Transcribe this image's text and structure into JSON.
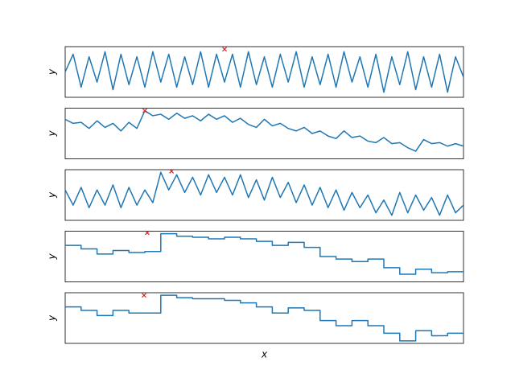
{
  "chart_data": [
    {
      "type": "line",
      "ylabel": "y",
      "color": "#1f77b4",
      "xlim": [
        0,
        100
      ],
      "ylim": [
        0,
        1
      ],
      "x": [
        0,
        2,
        4,
        6,
        8,
        10,
        12,
        14,
        16,
        18,
        20,
        22,
        24,
        26,
        28,
        30,
        32,
        34,
        36,
        38,
        40,
        42,
        44,
        46,
        48,
        50,
        52,
        54,
        56,
        58,
        60,
        62,
        64,
        66,
        68,
        70,
        72,
        74,
        76,
        78,
        80,
        82,
        84,
        86,
        88,
        90,
        92,
        94,
        96,
        98,
        100
      ],
      "values": [
        0.5,
        0.85,
        0.2,
        0.8,
        0.3,
        0.9,
        0.15,
        0.85,
        0.25,
        0.8,
        0.2,
        0.9,
        0.3,
        0.85,
        0.2,
        0.8,
        0.25,
        0.9,
        0.2,
        0.85,
        0.3,
        0.85,
        0.2,
        0.9,
        0.25,
        0.8,
        0.2,
        0.85,
        0.3,
        0.9,
        0.2,
        0.8,
        0.25,
        0.85,
        0.2,
        0.9,
        0.3,
        0.8,
        0.2,
        0.85,
        0.1,
        0.8,
        0.25,
        0.9,
        0.15,
        0.8,
        0.2,
        0.85,
        0.1,
        0.8,
        0.4
      ],
      "marker_x": 40,
      "marker_y": 0.95,
      "marker_color": "#d62728"
    },
    {
      "type": "line",
      "ylabel": "y",
      "color": "#1f77b4",
      "xlim": [
        0,
        100
      ],
      "ylim": [
        0,
        1
      ],
      "x": [
        0,
        2,
        4,
        6,
        8,
        10,
        12,
        14,
        16,
        18,
        20,
        22,
        24,
        26,
        28,
        30,
        32,
        34,
        36,
        38,
        40,
        42,
        44,
        46,
        48,
        50,
        52,
        54,
        56,
        58,
        60,
        62,
        64,
        66,
        68,
        70,
        72,
        74,
        76,
        78,
        80,
        82,
        84,
        86,
        88,
        90,
        92,
        94,
        96,
        98,
        100
      ],
      "values": [
        0.78,
        0.7,
        0.72,
        0.6,
        0.75,
        0.62,
        0.7,
        0.55,
        0.72,
        0.6,
        0.95,
        0.85,
        0.88,
        0.78,
        0.9,
        0.8,
        0.85,
        0.75,
        0.88,
        0.78,
        0.85,
        0.72,
        0.8,
        0.68,
        0.62,
        0.78,
        0.65,
        0.7,
        0.6,
        0.55,
        0.62,
        0.5,
        0.55,
        0.45,
        0.4,
        0.55,
        0.42,
        0.45,
        0.35,
        0.32,
        0.42,
        0.3,
        0.32,
        0.22,
        0.15,
        0.38,
        0.3,
        0.32,
        0.25,
        0.3,
        0.25
      ],
      "marker_x": 20,
      "marker_y": 0.95,
      "marker_color": "#d62728"
    },
    {
      "type": "line",
      "ylabel": "y",
      "color": "#1f77b4",
      "xlim": [
        0,
        100
      ],
      "ylim": [
        0,
        1
      ],
      "x": [
        0,
        2,
        4,
        6,
        8,
        10,
        12,
        14,
        16,
        18,
        20,
        22,
        24,
        26,
        28,
        30,
        32,
        34,
        36,
        38,
        40,
        42,
        44,
        46,
        48,
        50,
        52,
        54,
        56,
        58,
        60,
        62,
        64,
        66,
        68,
        70,
        72,
        74,
        76,
        78,
        80,
        82,
        84,
        86,
        88,
        90,
        92,
        94,
        96,
        98,
        100
      ],
      "values": [
        0.6,
        0.3,
        0.65,
        0.25,
        0.6,
        0.3,
        0.7,
        0.25,
        0.65,
        0.3,
        0.6,
        0.35,
        0.95,
        0.6,
        0.9,
        0.55,
        0.85,
        0.5,
        0.9,
        0.55,
        0.85,
        0.5,
        0.9,
        0.45,
        0.8,
        0.4,
        0.85,
        0.45,
        0.75,
        0.35,
        0.7,
        0.3,
        0.65,
        0.25,
        0.6,
        0.2,
        0.55,
        0.25,
        0.5,
        0.15,
        0.4,
        0.1,
        0.55,
        0.15,
        0.5,
        0.2,
        0.45,
        0.1,
        0.5,
        0.15,
        0.3
      ],
      "marker_x": 26.7,
      "marker_y": 0.97,
      "marker_color": "#d62728"
    },
    {
      "type": "line",
      "drawstyle": "steps-post",
      "ylabel": "y",
      "color": "#1f77b4",
      "xlim": [
        0,
        100
      ],
      "ylim": [
        0,
        1
      ],
      "x": [
        0,
        4,
        8,
        12,
        16,
        20,
        24,
        28,
        32,
        36,
        40,
        44,
        48,
        52,
        56,
        60,
        64,
        68,
        72,
        76,
        80,
        84,
        88,
        92,
        96,
        100
      ],
      "values": [
        0.72,
        0.65,
        0.55,
        0.62,
        0.58,
        0.6,
        0.95,
        0.9,
        0.88,
        0.85,
        0.88,
        0.85,
        0.8,
        0.72,
        0.78,
        0.68,
        0.5,
        0.45,
        0.4,
        0.45,
        0.28,
        0.15,
        0.25,
        0.18,
        0.2,
        0.22
      ],
      "marker_x": 20.6,
      "marker_y": 0.97,
      "marker_color": "#d62728"
    },
    {
      "type": "line",
      "drawstyle": "steps-post",
      "ylabel": "y",
      "xlabel": "x",
      "color": "#1f77b4",
      "xlim": [
        0,
        100
      ],
      "ylim": [
        0,
        1
      ],
      "x": [
        0,
        4,
        8,
        12,
        16,
        20,
        24,
        28,
        32,
        36,
        40,
        44,
        48,
        52,
        56,
        60,
        64,
        68,
        72,
        76,
        80,
        84,
        88,
        92,
        96,
        100
      ],
      "values": [
        0.72,
        0.65,
        0.55,
        0.65,
        0.6,
        0.6,
        0.95,
        0.9,
        0.88,
        0.88,
        0.85,
        0.8,
        0.72,
        0.6,
        0.7,
        0.65,
        0.45,
        0.35,
        0.45,
        0.35,
        0.2,
        0.05,
        0.25,
        0.15,
        0.2,
        0.2
      ],
      "marker_x": 19.8,
      "marker_y": 0.95,
      "marker_color": "#d62728"
    }
  ]
}
